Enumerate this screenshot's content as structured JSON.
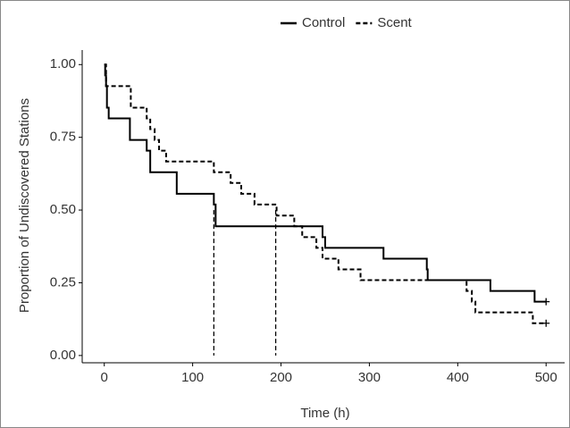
{
  "chart_data": {
    "type": "step",
    "x_label": "Time (h)",
    "y_label": "Proportion of Undiscovered Stations",
    "xlim": [
      -25,
      521
    ],
    "ylim": [
      -0.025,
      1.05
    ],
    "xticks": [
      0,
      100,
      200,
      300,
      400,
      500
    ],
    "yticks": [
      {
        "value": 0,
        "label": "0.00"
      },
      {
        "value": 0.25,
        "label": "0.25"
      },
      {
        "value": 0.5,
        "label": "0.50"
      },
      {
        "value": 0.75,
        "label": "0.75"
      },
      {
        "value": 1,
        "label": "1.00"
      }
    ],
    "legend": "top",
    "censor_marks": true,
    "median_lines": {
      "x": [
        124,
        194
      ],
      "y": 0.5
    },
    "series": [
      {
        "name": "Control",
        "color": "#000000",
        "dash": false,
        "x": [
          0,
          1,
          2,
          3,
          5,
          29,
          48,
          52,
          82,
          124,
          126,
          247,
          250,
          316,
          365,
          366,
          437,
          487,
          500
        ],
        "values": [
          1,
          0.963,
          0.926,
          0.852,
          0.815,
          0.741,
          0.704,
          0.63,
          0.556,
          0.519,
          0.444,
          0.407,
          0.37,
          0.333,
          0.296,
          0.259,
          0.222,
          0.185,
          0.185
        ]
      },
      {
        "name": "Scent",
        "color": "#000000",
        "dash": true,
        "x": [
          0,
          2,
          30,
          48,
          52,
          57,
          62,
          70,
          124,
          143,
          155,
          170,
          195,
          215,
          224,
          240,
          247,
          265,
          290,
          410,
          416,
          420,
          485,
          500
        ],
        "values": [
          1,
          0.926,
          0.852,
          0.815,
          0.778,
          0.741,
          0.704,
          0.667,
          0.63,
          0.593,
          0.556,
          0.519,
          0.481,
          0.444,
          0.407,
          0.37,
          0.333,
          0.296,
          0.259,
          0.222,
          0.185,
          0.148,
          0.111,
          0.111
        ]
      }
    ]
  }
}
